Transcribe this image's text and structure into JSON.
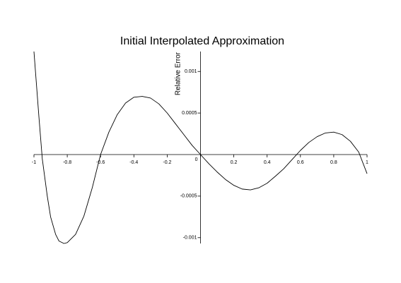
{
  "chart_data": {
    "type": "line",
    "title": "Initial Interpolated Approximation",
    "y_label": "Relative Error",
    "x": [
      -1,
      -0.97,
      -0.95,
      -0.92,
      -0.9,
      -0.87,
      -0.85,
      -0.82,
      -0.8,
      -0.75,
      -0.7,
      -0.65,
      -0.6,
      -0.55,
      -0.5,
      -0.45,
      -0.4,
      -0.35,
      -0.3,
      -0.25,
      -0.2,
      -0.15,
      -0.1,
      -0.05,
      0,
      0.05,
      0.1,
      0.15,
      0.2,
      0.25,
      0.3,
      0.35,
      0.4,
      0.45,
      0.5,
      0.55,
      0.6,
      0.65,
      0.7,
      0.75,
      0.8,
      0.85,
      0.9,
      0.95,
      1
    ],
    "series": [
      {
        "color": "#000000",
        "values": [
          0.00124,
          0.00045,
          -5e-05,
          -0.0005,
          -0.00075,
          -0.00096,
          -0.00104,
          -0.00107,
          -0.00106,
          -0.00096,
          -0.00074,
          -0.0004,
          0,
          0.00027,
          0.00048,
          0.00062,
          0.00069,
          0.0007,
          0.00068,
          0.00061,
          0.0005,
          0.00037,
          0.00024,
          0.00011,
          0,
          -0.00011,
          -0.00021,
          -0.0003,
          -0.00037,
          -0.000415,
          -0.000425,
          -0.0004,
          -0.000345,
          -0.00026,
          -0.00017,
          -6e-05,
          5e-05,
          0.000145,
          0.000215,
          0.00026,
          0.00027,
          0.00024,
          0.00016,
          3e-05,
          -0.00023
        ]
      }
    ],
    "xlim": [
      -1,
      1
    ],
    "ylim": [
      -0.00107,
      0.00124
    ],
    "xticks": [
      -1,
      -0.8,
      -0.6,
      -0.4,
      -0.2,
      0,
      0.2,
      0.4,
      0.6,
      0.8,
      1
    ],
    "yticks": [
      -0.001,
      -0.0005,
      0.0005,
      0.001
    ]
  }
}
